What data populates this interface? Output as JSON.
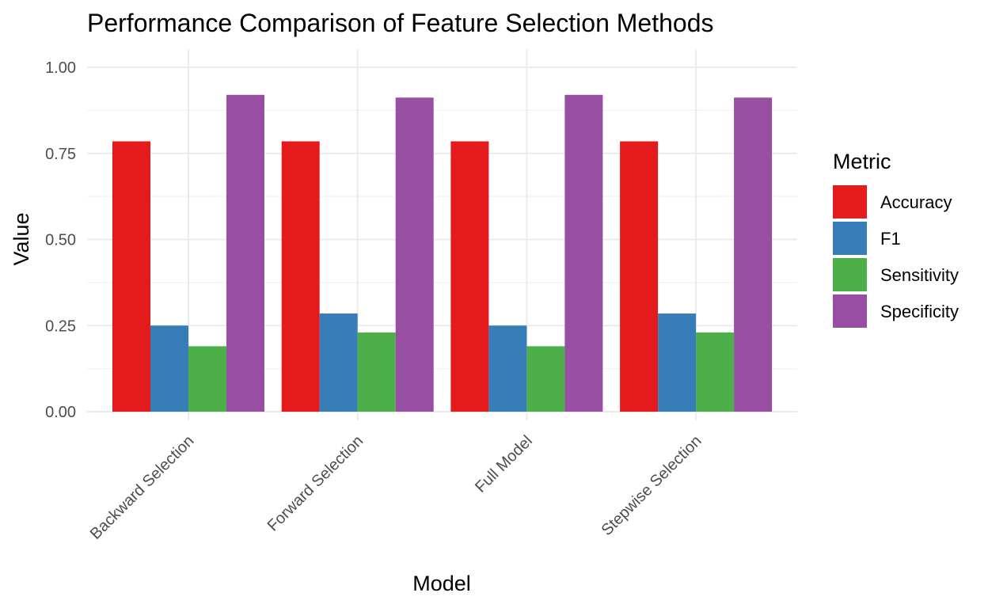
{
  "chart_data": {
    "type": "bar",
    "title": "Performance Comparison of Feature Selection Methods",
    "xlabel": "Model",
    "ylabel": "Value",
    "categories": [
      "Backward Selection",
      "Forward Selection",
      "Full Model",
      "Stepwise Selection"
    ],
    "series": [
      {
        "name": "Accuracy",
        "color": "#E41A1C",
        "values": [
          0.785,
          0.785,
          0.785,
          0.785
        ]
      },
      {
        "name": "F1",
        "color": "#377EB8",
        "values": [
          0.25,
          0.285,
          0.25,
          0.285
        ]
      },
      {
        "name": "Sensitivity",
        "color": "#4DAF4A",
        "values": [
          0.19,
          0.23,
          0.19,
          0.23
        ]
      },
      {
        "name": "Specificity",
        "color": "#984EA3",
        "values": [
          0.92,
          0.912,
          0.92,
          0.912
        ]
      }
    ],
    "ylim": [
      0,
      1.0
    ],
    "yticks": [
      0.0,
      0.25,
      0.5,
      0.75,
      1.0
    ],
    "ytick_labels": [
      "0.00",
      "0.25",
      "0.50",
      "0.75",
      "1.00"
    ],
    "legend": {
      "title": "Metric",
      "position": "right"
    },
    "grid": true
  }
}
